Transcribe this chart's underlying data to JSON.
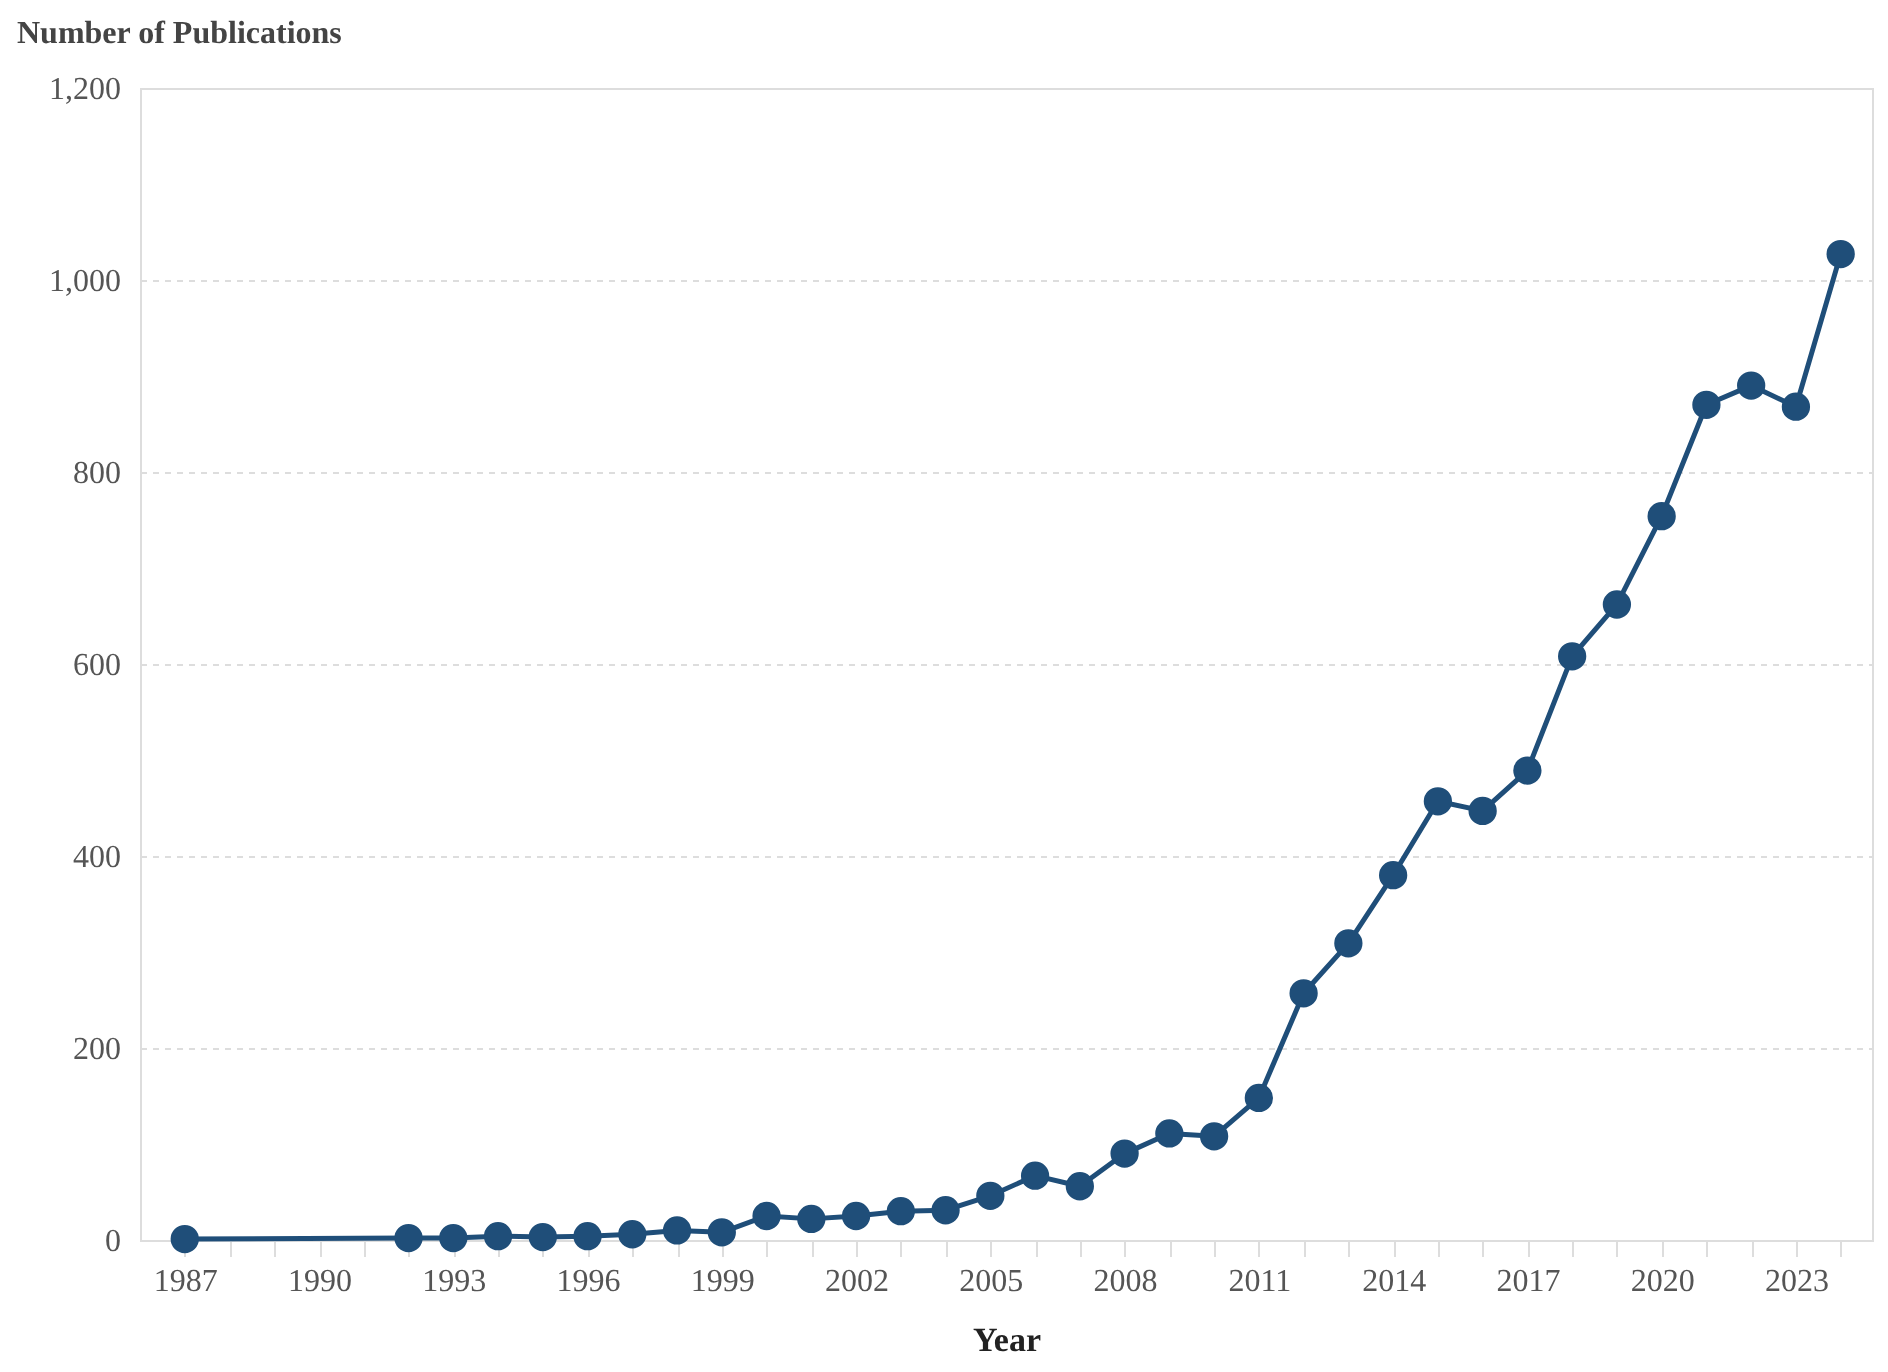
{
  "chart_data": {
    "type": "line",
    "xlabel": "Year",
    "ylabel": "Number of Publications",
    "x": [
      1987,
      1992,
      1993,
      1994,
      1995,
      1996,
      1997,
      1998,
      1999,
      2000,
      2001,
      2002,
      2003,
      2004,
      2005,
      2006,
      2007,
      2008,
      2009,
      2010,
      2011,
      2012,
      2013,
      2014,
      2015,
      2016,
      2017,
      2018,
      2019,
      2020,
      2021,
      2022,
      2023,
      2024
    ],
    "series": [
      {
        "color": "#1f4e79",
        "values": [
          1,
          2,
          2,
          4,
          3,
          4,
          6,
          10,
          8,
          25,
          22,
          25,
          30,
          31,
          46,
          67,
          56,
          90,
          111,
          108,
          148,
          257,
          309,
          380,
          457,
          447,
          489,
          608,
          662,
          754,
          870,
          890,
          868,
          1027
        ]
      }
    ],
    "xlim": [
      1986,
      2024.7
    ],
    "xticks": [
      1987,
      {
        "value": 1988,
        "label": null
      },
      {
        "value": 1989,
        "label": null
      },
      1990,
      {
        "value": 1991,
        "label": null
      },
      {
        "value": 1992,
        "label": null
      },
      1993,
      {
        "value": 1994,
        "label": null
      },
      {
        "value": 1995,
        "label": null
      },
      1996,
      {
        "value": 1997,
        "label": null
      },
      {
        "value": 1998,
        "label": null
      },
      1999,
      {
        "value": 2000,
        "label": null
      },
      {
        "value": 2001,
        "label": null
      },
      2002,
      {
        "value": 2003,
        "label": null
      },
      {
        "value": 2004,
        "label": null
      },
      2005,
      {
        "value": 2006,
        "label": null
      },
      {
        "value": 2007,
        "label": null
      },
      2008,
      {
        "value": 2009,
        "label": null
      },
      {
        "value": 2010,
        "label": null
      },
      2011,
      {
        "value": 2012,
        "label": null
      },
      {
        "value": 2013,
        "label": null
      },
      2014,
      {
        "value": 2015,
        "label": null
      },
      {
        "value": 2016,
        "label": null
      },
      2017,
      {
        "value": 2018,
        "label": null
      },
      {
        "value": 2019,
        "label": null
      },
      2020,
      {
        "value": 2021,
        "label": null
      },
      {
        "value": 2022,
        "label": null
      },
      2023,
      {
        "value": 2024,
        "label": null
      }
    ],
    "ylim": [
      0,
      1200
    ],
    "yticks": [
      0,
      200,
      400,
      600,
      800,
      {
        "value": 1000,
        "label": "1,000"
      },
      {
        "value": 1200,
        "label": "1,200"
      }
    ],
    "grid": "y",
    "marker": "circle",
    "line_style": "solid",
    "legend": false
  }
}
